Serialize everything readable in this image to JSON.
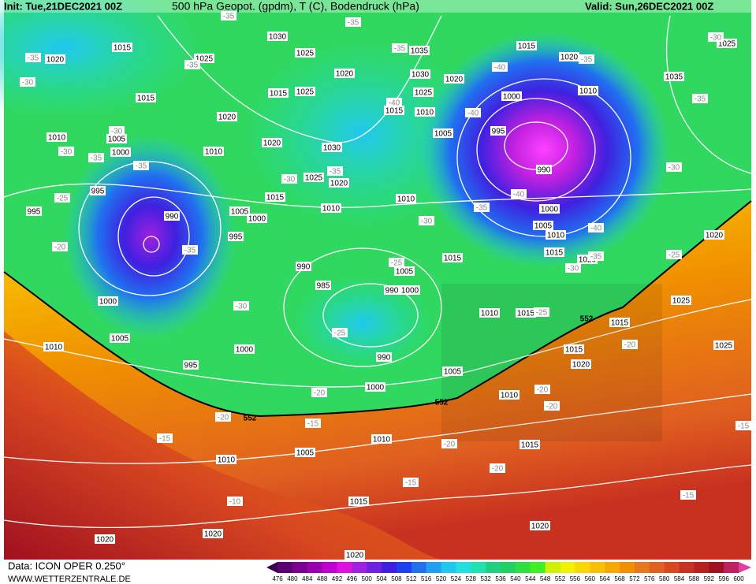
{
  "header": {
    "init": "Init: Tue,21DEC2021 00Z",
    "title": "500 hPa Geopot. (gpdm), T (C), Bodendruck (hPa)",
    "valid": "Valid: Sun,26DEC2021 00Z"
  },
  "footer": {
    "data": "Data: ICON OPER 0.250°",
    "site": "WWW.WETTERZENTRALE.DE"
  },
  "colorbar": {
    "ticks": [
      476,
      480,
      484,
      488,
      492,
      496,
      500,
      504,
      508,
      512,
      516,
      520,
      524,
      528,
      532,
      536,
      540,
      544,
      548,
      552,
      556,
      560,
      564,
      568,
      572,
      576,
      580,
      584,
      588,
      592,
      596,
      600
    ],
    "colors": [
      "#3c0050",
      "#5a0070",
      "#7a0090",
      "#9a00b0",
      "#c000d0",
      "#e010e0",
      "#a020e0",
      "#7020e0",
      "#4020e0",
      "#2040f0",
      "#2070f0",
      "#20a0f0",
      "#20c8f0",
      "#20e0e0",
      "#20e0b0",
      "#20d080",
      "#20d060",
      "#30e040",
      "#40f020",
      "#d0f000",
      "#f0f000",
      "#f8d800",
      "#f8c000",
      "#f8a800",
      "#f09000",
      "#e87820",
      "#e06020",
      "#d84820",
      "#c83020",
      "#b82020",
      "#a01020",
      "#c02060",
      "#e040a0"
    ]
  },
  "isobar_labels": [
    "1015",
    "1030",
    "1025",
    "1020",
    "1025",
    "1035",
    "1015",
    "1020",
    "1025",
    "1030",
    "1020",
    "1020",
    "1015",
    "1015",
    "1025",
    "1025",
    "1000",
    "1010",
    "1035",
    "1020",
    "1015",
    "1010",
    "1010",
    "1005",
    "1000",
    "1010",
    "1020",
    "1030",
    "1005",
    "995",
    "990",
    "1025",
    "1020",
    "995",
    "990",
    "1015",
    "1005",
    "1000",
    "1010",
    "1010",
    "1000",
    "1005",
    "1010",
    "995",
    "995",
    "1015",
    "1015",
    "1020",
    "1020",
    "990",
    "985",
    "1005",
    "990",
    "1000",
    "1000",
    "1025",
    "1015",
    "1010",
    "1015",
    "1010",
    "1005",
    "1000",
    "990",
    "1015",
    "1020",
    "1025",
    "995",
    "1000",
    "1005",
    "1010",
    "1010",
    "1005",
    "1015",
    "1010",
    "1015",
    "1020",
    "1020",
    "1020",
    "1020"
  ],
  "temperature_labels": [
    "-35",
    "-35",
    "-35",
    "-35",
    "-35",
    "-40",
    "-35",
    "-30",
    "-30",
    "-40",
    "-40",
    "-35",
    "-30",
    "-30",
    "-35",
    "-35",
    "-30",
    "-35",
    "-30",
    "-25",
    "-40",
    "-35",
    "-30",
    "-40",
    "-35",
    "-35",
    "-20",
    "-25",
    "-30",
    "-25",
    "-30",
    "-25",
    "-25",
    "-20",
    "-20",
    "-20",
    "-20",
    "-20",
    "-15",
    "-15",
    "-20",
    "-20",
    "-15",
    "-10",
    "-15",
    "-15"
  ],
  "contour_labels": [
    "552",
    "552",
    "552"
  ]
}
